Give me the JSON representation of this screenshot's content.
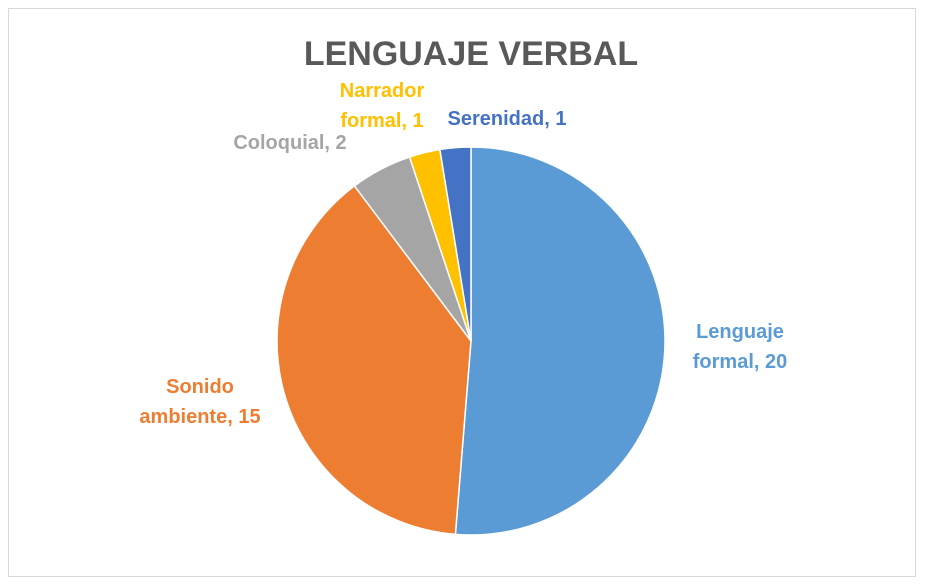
{
  "chart_data": {
    "type": "pie",
    "title": "LENGUAJE VERBAL",
    "categories": [
      "Lenguaje formal",
      "Sonido ambiente",
      "Coloquial",
      "Narrador formal",
      "Serenidad"
    ],
    "values": [
      20,
      15,
      2,
      1,
      1
    ],
    "value_labels": [
      "Lenguaje formal, 20",
      "Sonido ambiente, 15",
      "Coloquial, 2",
      "Narrador formal, 1",
      "Serenidad, 1"
    ],
    "colors": [
      "#5b9bd5",
      "#ed7d31",
      "#a5a5a5",
      "#ffc000",
      "#4472c4"
    ]
  }
}
